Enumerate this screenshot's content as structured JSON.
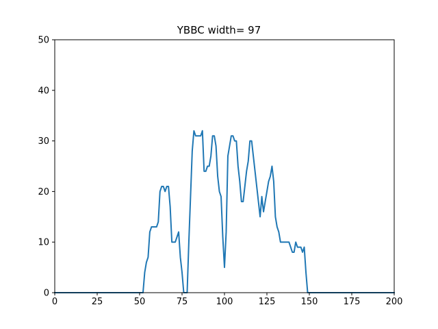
{
  "chart_data": {
    "type": "line",
    "title": "YBBC width= 97",
    "xlabel": "",
    "ylabel": "",
    "xlim": [
      0,
      200
    ],
    "ylim": [
      0,
      50
    ],
    "xticks": [
      0,
      25,
      50,
      75,
      100,
      125,
      150,
      175,
      200
    ],
    "yticks": [
      0,
      10,
      20,
      30,
      40,
      50
    ],
    "grid": false,
    "color": "#1f77b4",
    "series": [
      {
        "x": [
          0,
          52,
          53,
          54,
          55,
          56,
          57,
          58,
          59,
          60,
          61,
          62,
          63,
          64,
          65,
          66,
          67,
          68,
          69,
          70,
          71,
          72,
          73,
          74,
          75,
          76,
          77,
          78,
          79,
          80,
          81,
          82,
          83,
          84,
          85,
          86,
          87,
          88,
          89,
          90,
          91,
          92,
          93,
          94,
          95,
          96,
          97,
          98,
          99,
          100,
          101,
          102,
          103,
          104,
          105,
          106,
          107,
          108,
          109,
          110,
          111,
          112,
          113,
          114,
          115,
          116,
          117,
          118,
          119,
          120,
          121,
          122,
          123,
          124,
          125,
          126,
          127,
          128,
          129,
          130,
          131,
          132,
          133,
          134,
          135,
          136,
          137,
          138,
          139,
          140,
          141,
          142,
          143,
          144,
          145,
          146,
          147,
          148,
          149,
          200
        ],
        "y": [
          0,
          0,
          4,
          6,
          7,
          12,
          13,
          13,
          13,
          13,
          14,
          20,
          21,
          21,
          20,
          21,
          21,
          17,
          10,
          10,
          10,
          11,
          12,
          7,
          4,
          0,
          0,
          0,
          10,
          19,
          28,
          32,
          31,
          31,
          31,
          31,
          32,
          24,
          24,
          25,
          25,
          27,
          31,
          31,
          29,
          23,
          20,
          19,
          11,
          5,
          12,
          27,
          29,
          31,
          31,
          30,
          30,
          25,
          22,
          18,
          18,
          21,
          24,
          26,
          30,
          30,
          27,
          24,
          21,
          18,
          15,
          19,
          16,
          18,
          20,
          22,
          23,
          25,
          22,
          15,
          13,
          12,
          10,
          10,
          10,
          10,
          10,
          10,
          9,
          8,
          8,
          10,
          9,
          9,
          9,
          8,
          9,
          4,
          0,
          0
        ]
      }
    ]
  }
}
